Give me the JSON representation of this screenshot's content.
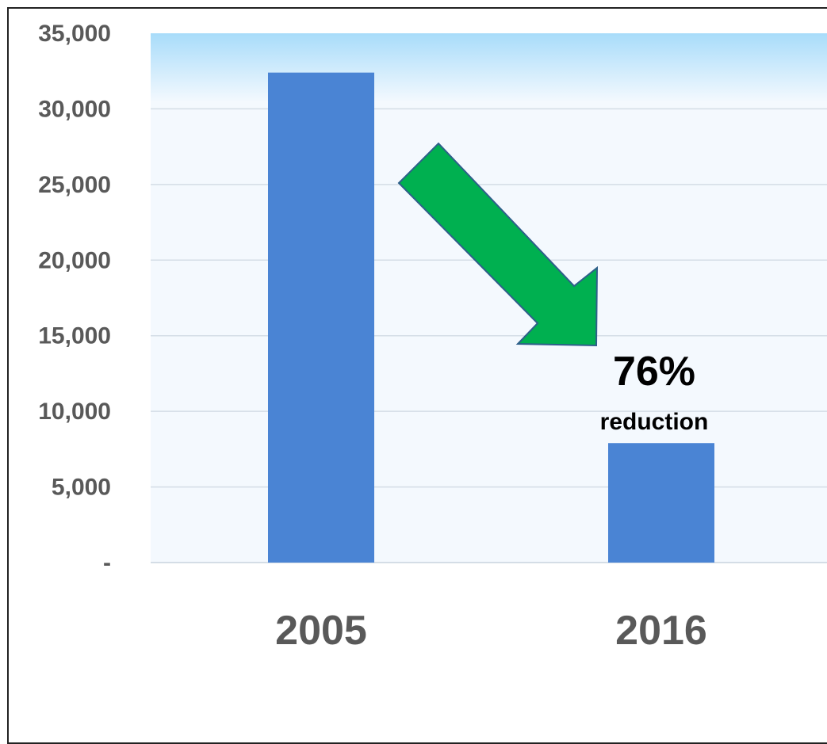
{
  "chart_data": {
    "type": "bar",
    "categories": [
      "2005",
      "2016"
    ],
    "values": [
      32400,
      7900
    ],
    "ylim": [
      0,
      35000
    ],
    "yticks": [
      0,
      5000,
      10000,
      15000,
      20000,
      25000,
      30000,
      35000
    ],
    "ytick_labels": [
      "-",
      "5,000",
      "10,000",
      "15,000",
      "20,000",
      "25,000",
      "30,000",
      "35,000"
    ],
    "grid": true,
    "legend": "none",
    "annotation": {
      "value": "76%",
      "label": "reduction",
      "arrow": "down-right"
    },
    "colors": {
      "bar": "#4a84d4",
      "arrow_fill": "#00b050",
      "arrow_outline": "#2e5f8a",
      "plot_gradient_top": "#a8dcfa",
      "plot_background": "#f4f9fe",
      "gridline": "#d4dde6",
      "tick_text": "#595959"
    }
  }
}
